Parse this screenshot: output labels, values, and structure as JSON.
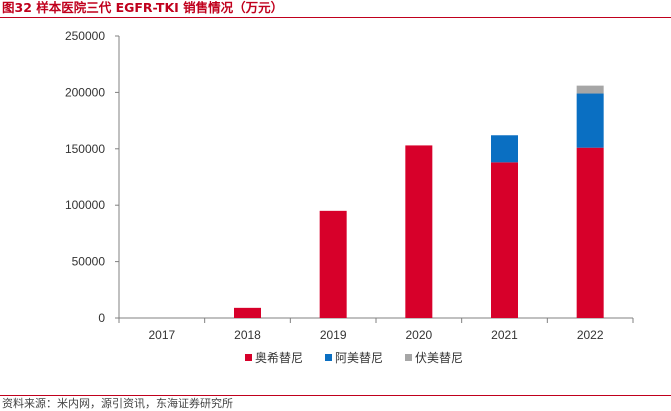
{
  "header": {
    "figure_title": "图32 样本医院三代 EGFR-TKI 销售情况（万元）"
  },
  "footer": {
    "source": "资料来源：米内网，源引资讯，东海证券研究所"
  },
  "chart_data": {
    "type": "bar",
    "stacked": true,
    "title": "图32 样本医院三代 EGFR-TKI 销售情况（万元）",
    "xlabel": "",
    "ylabel": "",
    "ylim": [
      0,
      250000
    ],
    "yticks": [
      0,
      50000,
      100000,
      150000,
      200000,
      250000
    ],
    "categories": [
      "2017",
      "2018",
      "2019",
      "2020",
      "2021",
      "2022"
    ],
    "series": [
      {
        "name": "奥希替尼",
        "color": "#d7002a",
        "values": [
          0,
          9000,
          95000,
          153000,
          138000,
          151000
        ]
      },
      {
        "name": "阿美替尼",
        "color": "#0a6fc2",
        "values": [
          0,
          0,
          0,
          0,
          24000,
          48000
        ]
      },
      {
        "name": "伏美替尼",
        "color": "#a6a6a6",
        "values": [
          0,
          0,
          0,
          0,
          0,
          7000
        ]
      }
    ],
    "grid": false,
    "legend_position": "bottom"
  }
}
